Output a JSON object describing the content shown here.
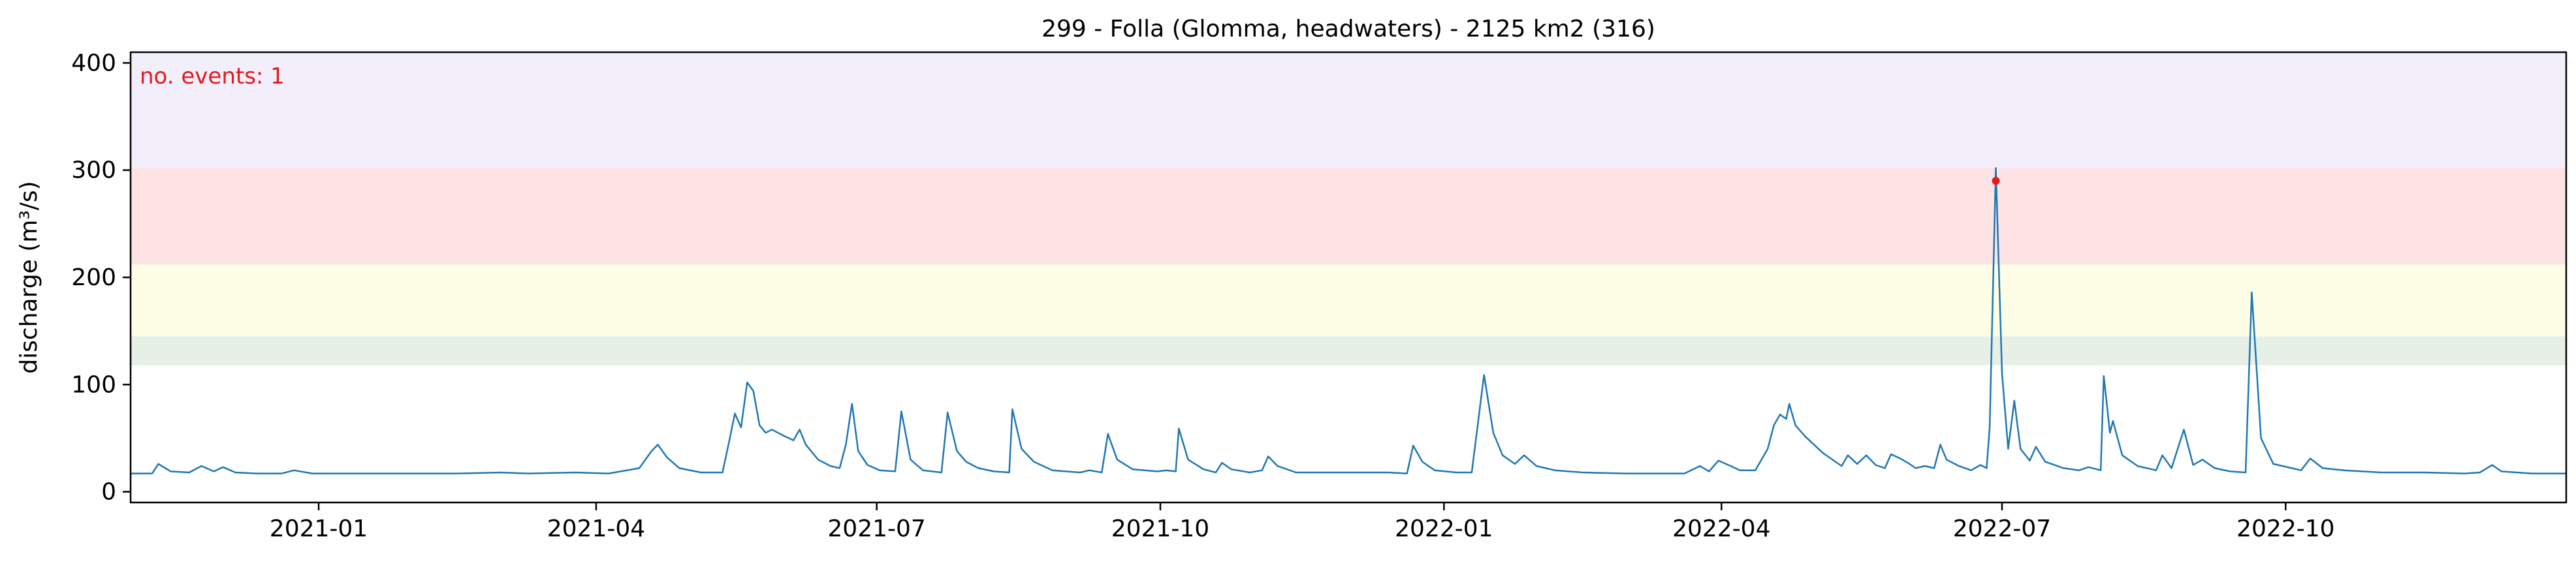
{
  "chart_data": {
    "type": "line",
    "title": "299 - Folla (Glomma, headwaters) - 2125 km2 (316)",
    "xlabel": "",
    "ylabel": "discharge (m³/s)",
    "xlim": [
      "2020-11-01",
      "2022-12-31"
    ],
    "ylim": [
      -10,
      410
    ],
    "x_ticks": [
      "2021-01",
      "2021-04",
      "2021-07",
      "2021-10",
      "2022-01",
      "2022-04",
      "2022-07",
      "2022-10"
    ],
    "y_ticks": [
      0,
      100,
      200,
      300,
      400
    ],
    "grid": false,
    "annotation": {
      "text": "no. events: 1",
      "color": "#e41a1c"
    },
    "threshold_bands": [
      {
        "from": 118,
        "to": 145,
        "color": "#e6f0e6"
      },
      {
        "from": 145,
        "to": 212,
        "color": "#fefee6"
      },
      {
        "from": 212,
        "to": 302,
        "color": "#fee3e5"
      },
      {
        "from": 302,
        "to": 410,
        "color": "#f2effa"
      }
    ],
    "event_markers": [
      {
        "x": "2022-06-29",
        "y": 290,
        "color": "#e41a1c"
      }
    ],
    "series": [
      {
        "color": "#1f77b4",
        "points": [
          [
            "2020-11-01",
            17
          ],
          [
            "2020-11-08",
            17
          ],
          [
            "2020-11-10",
            26
          ],
          [
            "2020-11-14",
            19
          ],
          [
            "2020-11-20",
            18
          ],
          [
            "2020-11-24",
            24
          ],
          [
            "2020-11-28",
            19
          ],
          [
            "2020-12-01",
            23
          ],
          [
            "2020-12-05",
            18
          ],
          [
            "2020-12-12",
            17
          ],
          [
            "2020-12-20",
            17
          ],
          [
            "2020-12-24",
            20
          ],
          [
            "2020-12-30",
            17
          ],
          [
            "2021-01-20",
            17
          ],
          [
            "2021-02-15",
            17
          ],
          [
            "2021-03-01",
            18
          ],
          [
            "2021-03-10",
            17
          ],
          [
            "2021-03-25",
            18
          ],
          [
            "2021-04-05",
            17
          ],
          [
            "2021-04-15",
            22
          ],
          [
            "2021-04-19",
            38
          ],
          [
            "2021-04-21",
            44
          ],
          [
            "2021-04-24",
            32
          ],
          [
            "2021-04-28",
            22
          ],
          [
            "2021-05-05",
            18
          ],
          [
            "2021-05-12",
            18
          ],
          [
            "2021-05-14",
            45
          ],
          [
            "2021-05-16",
            73
          ],
          [
            "2021-05-18",
            60
          ],
          [
            "2021-05-20",
            102
          ],
          [
            "2021-05-22",
            94
          ],
          [
            "2021-05-24",
            62
          ],
          [
            "2021-05-26",
            55
          ],
          [
            "2021-05-28",
            58
          ],
          [
            "2021-06-01",
            52
          ],
          [
            "2021-06-04",
            48
          ],
          [
            "2021-06-06",
            58
          ],
          [
            "2021-06-08",
            44
          ],
          [
            "2021-06-12",
            30
          ],
          [
            "2021-06-16",
            24
          ],
          [
            "2021-06-19",
            22
          ],
          [
            "2021-06-21",
            44
          ],
          [
            "2021-06-23",
            82
          ],
          [
            "2021-06-25",
            38
          ],
          [
            "2021-06-28",
            25
          ],
          [
            "2021-07-02",
            20
          ],
          [
            "2021-07-07",
            19
          ],
          [
            "2021-07-09",
            75
          ],
          [
            "2021-07-12",
            30
          ],
          [
            "2021-07-16",
            20
          ],
          [
            "2021-07-22",
            18
          ],
          [
            "2021-07-24",
            74
          ],
          [
            "2021-07-27",
            38
          ],
          [
            "2021-07-30",
            28
          ],
          [
            "2021-08-03",
            22
          ],
          [
            "2021-08-08",
            19
          ],
          [
            "2021-08-13",
            18
          ],
          [
            "2021-08-14",
            77
          ],
          [
            "2021-08-17",
            40
          ],
          [
            "2021-08-21",
            28
          ],
          [
            "2021-08-27",
            20
          ],
          [
            "2021-09-05",
            18
          ],
          [
            "2021-09-08",
            20
          ],
          [
            "2021-09-12",
            18
          ],
          [
            "2021-09-14",
            54
          ],
          [
            "2021-09-17",
            30
          ],
          [
            "2021-09-22",
            21
          ],
          [
            "2021-09-30",
            19
          ],
          [
            "2021-10-03",
            20
          ],
          [
            "2021-10-06",
            19
          ],
          [
            "2021-10-07",
            59
          ],
          [
            "2021-10-10",
            30
          ],
          [
            "2021-10-15",
            21
          ],
          [
            "2021-10-19",
            18
          ],
          [
            "2021-10-21",
            27
          ],
          [
            "2021-10-24",
            21
          ],
          [
            "2021-10-30",
            18
          ],
          [
            "2021-11-03",
            20
          ],
          [
            "2021-11-05",
            33
          ],
          [
            "2021-11-08",
            24
          ],
          [
            "2021-11-14",
            18
          ],
          [
            "2021-11-25",
            18
          ],
          [
            "2021-12-05",
            18
          ],
          [
            "2021-12-14",
            18
          ],
          [
            "2021-12-20",
            17
          ],
          [
            "2021-12-22",
            43
          ],
          [
            "2021-12-25",
            28
          ],
          [
            "2021-12-29",
            20
          ],
          [
            "2022-01-05",
            18
          ],
          [
            "2022-01-10",
            18
          ],
          [
            "2022-01-14",
            109
          ],
          [
            "2022-01-17",
            55
          ],
          [
            "2022-01-20",
            34
          ],
          [
            "2022-01-24",
            26
          ],
          [
            "2022-01-27",
            34
          ],
          [
            "2022-01-31",
            24
          ],
          [
            "2022-02-06",
            20
          ],
          [
            "2022-02-15",
            18
          ],
          [
            "2022-03-01",
            17
          ],
          [
            "2022-03-20",
            17
          ],
          [
            "2022-03-25",
            24
          ],
          [
            "2022-03-28",
            19
          ],
          [
            "2022-03-31",
            29
          ],
          [
            "2022-04-04",
            24
          ],
          [
            "2022-04-07",
            20
          ],
          [
            "2022-04-12",
            20
          ],
          [
            "2022-04-16",
            40
          ],
          [
            "2022-04-18",
            62
          ],
          [
            "2022-04-20",
            72
          ],
          [
            "2022-04-22",
            68
          ],
          [
            "2022-04-23",
            82
          ],
          [
            "2022-04-25",
            62
          ],
          [
            "2022-04-28",
            52
          ],
          [
            "2022-05-01",
            44
          ],
          [
            "2022-05-04",
            36
          ],
          [
            "2022-05-08",
            28
          ],
          [
            "2022-05-10",
            24
          ],
          [
            "2022-05-12",
            34
          ],
          [
            "2022-05-15",
            26
          ],
          [
            "2022-05-18",
            34
          ],
          [
            "2022-05-21",
            25
          ],
          [
            "2022-05-24",
            22
          ],
          [
            "2022-05-26",
            35
          ],
          [
            "2022-05-29",
            31
          ],
          [
            "2022-06-01",
            26
          ],
          [
            "2022-06-03",
            22
          ],
          [
            "2022-06-06",
            24
          ],
          [
            "2022-06-09",
            22
          ],
          [
            "2022-06-11",
            44
          ],
          [
            "2022-06-13",
            30
          ],
          [
            "2022-06-17",
            24
          ],
          [
            "2022-06-21",
            20
          ],
          [
            "2022-06-24",
            25
          ],
          [
            "2022-06-26",
            22
          ],
          [
            "2022-06-27",
            60
          ],
          [
            "2022-06-29",
            302
          ],
          [
            "2022-07-01",
            110
          ],
          [
            "2022-07-03",
            40
          ],
          [
            "2022-07-05",
            85
          ],
          [
            "2022-07-07",
            40
          ],
          [
            "2022-07-10",
            29
          ],
          [
            "2022-07-12",
            42
          ],
          [
            "2022-07-15",
            28
          ],
          [
            "2022-07-21",
            22
          ],
          [
            "2022-07-26",
            20
          ],
          [
            "2022-07-29",
            23
          ],
          [
            "2022-08-02",
            20
          ],
          [
            "2022-08-03",
            108
          ],
          [
            "2022-08-05",
            55
          ],
          [
            "2022-08-06",
            66
          ],
          [
            "2022-08-09",
            34
          ],
          [
            "2022-08-14",
            24
          ],
          [
            "2022-08-20",
            20
          ],
          [
            "2022-08-22",
            34
          ],
          [
            "2022-08-25",
            22
          ],
          [
            "2022-08-29",
            58
          ],
          [
            "2022-09-01",
            25
          ],
          [
            "2022-09-04",
            30
          ],
          [
            "2022-09-08",
            22
          ],
          [
            "2022-09-13",
            19
          ],
          [
            "2022-09-18",
            18
          ],
          [
            "2022-09-20",
            186
          ],
          [
            "2022-09-23",
            50
          ],
          [
            "2022-09-27",
            26
          ],
          [
            "2022-10-03",
            22
          ],
          [
            "2022-10-06",
            20
          ],
          [
            "2022-10-09",
            31
          ],
          [
            "2022-10-13",
            22
          ],
          [
            "2022-10-20",
            20
          ],
          [
            "2022-11-01",
            18
          ],
          [
            "2022-11-15",
            18
          ],
          [
            "2022-11-28",
            17
          ],
          [
            "2022-12-03",
            18
          ],
          [
            "2022-12-07",
            25
          ],
          [
            "2022-12-10",
            19
          ],
          [
            "2022-12-20",
            17
          ],
          [
            "2022-12-31",
            17
          ]
        ]
      }
    ]
  }
}
